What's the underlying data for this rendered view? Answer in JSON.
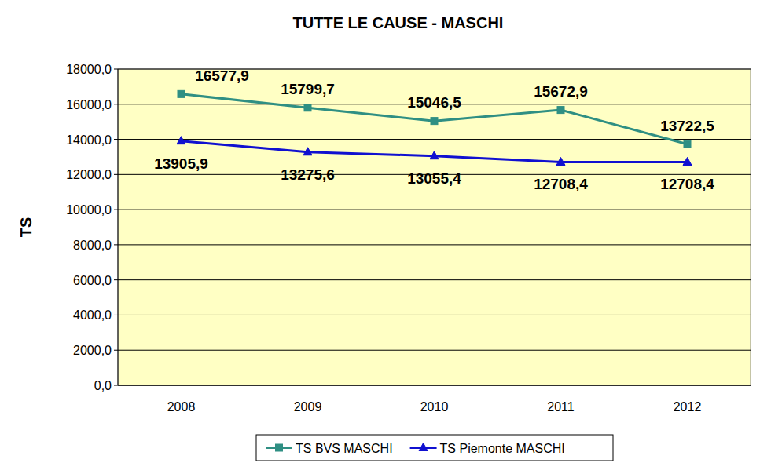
{
  "chart_data": {
    "type": "line",
    "title": "TUTTE LE CAUSE - MASCHI",
    "ylabel": "TS",
    "categories": [
      "2008",
      "2009",
      "2010",
      "2011",
      "2012"
    ],
    "series": [
      {
        "name": "TS BVS MASCHI",
        "color": "#2f8f83",
        "marker": "square",
        "values": [
          16577.9,
          15799.7,
          15046.5,
          15672.9,
          13722.5
        ],
        "value_labels": [
          "16577,9",
          "15799,7",
          "15046,5",
          "15672,9",
          "13722,5"
        ]
      },
      {
        "name": "TS Piemonte MASCHI",
        "color": "#1010d0",
        "marker": "triangle",
        "values": [
          13905.9,
          13275.6,
          13055.4,
          12708.4,
          12708.4
        ],
        "value_labels": [
          "13905,9",
          "13275,6",
          "13055,4",
          "12708,4",
          "12708,4"
        ]
      }
    ],
    "ylim": [
      0,
      18000
    ],
    "yticks": [
      {
        "value": 0,
        "label": "0,0"
      },
      {
        "value": 2000,
        "label": "2000,0"
      },
      {
        "value": 4000,
        "label": "4000,0"
      },
      {
        "value": 6000,
        "label": "6000,0"
      },
      {
        "value": 8000,
        "label": "8000,0"
      },
      {
        "value": 10000,
        "label": "10000,0"
      },
      {
        "value": 12000,
        "label": "12000,0"
      },
      {
        "value": 14000,
        "label": "14000,0"
      },
      {
        "value": 16000,
        "label": "16000,0"
      },
      {
        "value": 18000,
        "label": "18000,0"
      }
    ],
    "grid": true,
    "data_labels": true,
    "legend": "bottom"
  }
}
